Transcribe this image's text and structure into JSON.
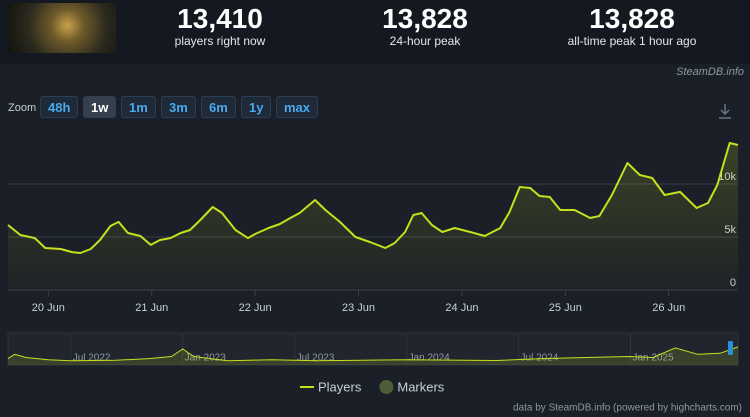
{
  "header": {
    "stats": [
      {
        "value": "13,410",
        "label": "players right now"
      },
      {
        "value": "13,828",
        "label": "24-hour peak"
      },
      {
        "value": "13,828",
        "label": "all-time peak 1 hour ago"
      }
    ],
    "watermark": "SteamDB.info"
  },
  "zoom": {
    "label": "Zoom",
    "buttons": [
      "48h",
      "1w",
      "1m",
      "3m",
      "6m",
      "1y",
      "max"
    ],
    "active": "1w"
  },
  "chart_data": {
    "type": "line",
    "x": [
      19.61,
      19.73,
      19.87,
      19.97,
      20.12,
      20.23,
      20.31,
      20.41,
      20.5,
      20.6,
      20.68,
      20.77,
      20.89,
      20.99,
      21.08,
      21.18,
      21.28,
      21.37,
      21.47,
      21.59,
      21.68,
      21.81,
      21.93,
      22.0,
      22.13,
      22.24,
      22.34,
      22.43,
      22.58,
      22.68,
      22.82,
      22.97,
      23.11,
      23.26,
      23.35,
      23.45,
      23.53,
      23.61,
      23.71,
      23.81,
      23.93,
      24.08,
      24.22,
      24.37,
      24.46,
      24.56,
      24.66,
      24.75,
      24.85,
      24.95,
      25.09,
      25.24,
      25.33,
      25.45,
      25.6,
      25.72,
      25.84,
      25.96,
      26.11,
      26.27,
      26.38,
      26.47,
      26.59,
      26.67
    ],
    "series": [
      {
        "name": "Players",
        "color": "#c6e01e",
        "values": [
          6130,
          5190,
          4900,
          3960,
          3870,
          3580,
          3490,
          3870,
          4720,
          6040,
          6420,
          5380,
          5090,
          4250,
          4720,
          4900,
          5380,
          5660,
          6600,
          7830,
          7260,
          5660,
          4900,
          5280,
          5850,
          6230,
          6790,
          7260,
          8490,
          7550,
          6420,
          5000,
          4530,
          3960,
          4430,
          5470,
          7080,
          7260,
          6130,
          5470,
          5850,
          5470,
          5090,
          5850,
          7360,
          9720,
          9620,
          8870,
          8770,
          7550,
          7550,
          6790,
          6980,
          8960,
          11980,
          10850,
          10570,
          8960,
          9250,
          7740,
          8210,
          9910,
          13870,
          13680
        ]
      },
      {
        "name": "Markers",
        "color": "#4d5e36"
      }
    ],
    "xlim": [
      19.61,
      26.67
    ],
    "xticks": [
      {
        "value": 20,
        "label": "20 Jun"
      },
      {
        "value": 21,
        "label": "21 Jun"
      },
      {
        "value": 22,
        "label": "22 Jun"
      },
      {
        "value": 23,
        "label": "23 Jun"
      },
      {
        "value": 24,
        "label": "24 Jun"
      },
      {
        "value": 25,
        "label": "25 Jun"
      },
      {
        "value": 26,
        "label": "26 Jun"
      }
    ],
    "ylim": [
      0,
      15000
    ],
    "yticks": [
      0,
      {
        "value": 5000,
        "label": "5k"
      },
      {
        "value": 10000,
        "label": "10k"
      }
    ],
    "grid": true,
    "legend": "bottom",
    "credits": "data by SteamDB.info (powered by highcharts.com)"
  },
  "navigator": {
    "type": "area",
    "color": "#c6e01e",
    "x": [
      2022.22,
      2022.25,
      2022.3,
      2022.4,
      2022.5,
      2022.7,
      2022.85,
      2022.95,
      2023.0,
      2023.05,
      2023.2,
      2023.4,
      2023.6,
      2023.8,
      2024.0,
      2024.2,
      2024.4,
      2024.6,
      2024.8,
      2025.0,
      2025.1,
      2025.2,
      2025.3,
      2025.4,
      2025.48
    ],
    "values": [
      3000,
      5000,
      3500,
      2500,
      2000,
      2200,
      3000,
      4000,
      7500,
      4000,
      2000,
      2500,
      2000,
      2200,
      2500,
      2300,
      2100,
      3000,
      3500,
      4000,
      3500,
      8000,
      5000,
      5500,
      8500
    ],
    "xlim": [
      2022.22,
      2025.48
    ],
    "ylim": [
      0,
      15000
    ],
    "xticks": [
      {
        "value": 2022.5,
        "label": "Jul 2022"
      },
      {
        "value": 2023.0,
        "label": "Jan 2023"
      },
      {
        "value": 2023.5,
        "label": "Jul 2023"
      },
      {
        "value": 2024.0,
        "label": "Jan 2024"
      },
      {
        "value": 2024.5,
        "label": "Jul 2024"
      },
      {
        "value": 2025.0,
        "label": "Jan 2025"
      }
    ]
  }
}
